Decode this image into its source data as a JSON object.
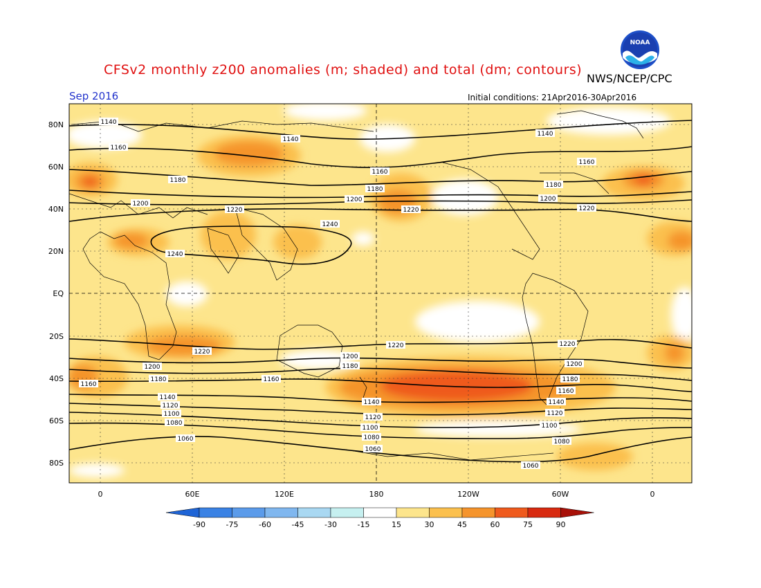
{
  "title": "CFSv2 monthly z200 anomalies (m; shaded) and total (dm; contours)",
  "agency": "NWS/NCEP/CPC",
  "logo_text": "NOAA",
  "month": "Sep 2016",
  "initial_conditions": "Initial conditions: 21Apr2016-30Apr2016",
  "lat_labels": [
    "80N",
    "60N",
    "40N",
    "20N",
    "EQ",
    "20S",
    "40S",
    "60S",
    "80S"
  ],
  "lon_labels": [
    "0",
    "60E",
    "120E",
    "180",
    "120W",
    "60W",
    "0"
  ],
  "colorbar": {
    "labels": [
      "-90",
      "-75",
      "-60",
      "-45",
      "-30",
      "-15",
      "15",
      "30",
      "45",
      "60",
      "75",
      "90"
    ],
    "colors": [
      "#1e64d6",
      "#3a82e4",
      "#5b9bea",
      "#80b7ef",
      "#a9d8f2",
      "#c6f0f0",
      "#ffffff",
      "#fde58c",
      "#fbc04e",
      "#f5942c",
      "#ef5a1d",
      "#d82a10",
      "#a81008"
    ]
  },
  "contour_labels": [
    "1140",
    "1140",
    "1160",
    "1180",
    "1200",
    "1220",
    "1240",
    "1240",
    "1160",
    "1180",
    "1200",
    "1220",
    "1140",
    "1160",
    "1180",
    "1200",
    "1220",
    "1220",
    "1200",
    "1180",
    "1160",
    "1140",
    "1120",
    "1100",
    "1080",
    "1060",
    "1220",
    "1200",
    "1180",
    "1160",
    "1140",
    "1120",
    "1100",
    "1080",
    "1060",
    "1220",
    "1200",
    "1180",
    "1160",
    "1140",
    "1120",
    "1100",
    "1080",
    "1060"
  ]
}
